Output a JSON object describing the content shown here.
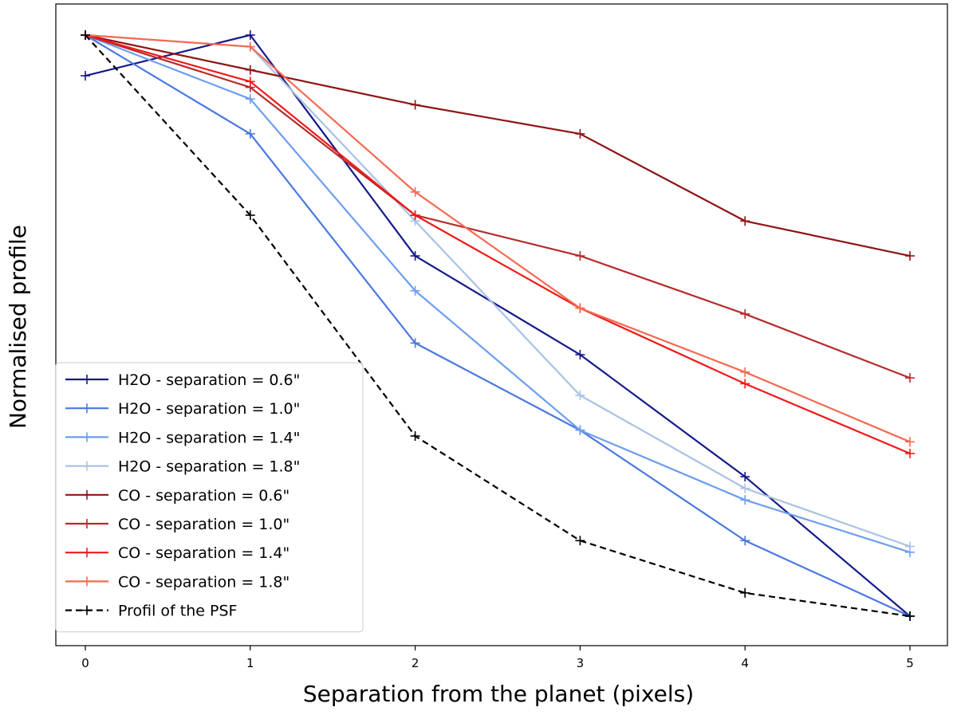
{
  "chart_data": {
    "type": "line",
    "title": "",
    "xlabel": "Separation from the planet (pixels)",
    "ylabel": "Normalised profile",
    "xlim": [
      -0.45,
      5.3
    ],
    "ylim": [
      0.0,
      1.0
    ],
    "x_ticks": [
      0,
      1,
      2,
      3,
      4,
      5
    ],
    "y_ticks": [],
    "grid": false,
    "legend_position": "lower-left",
    "x": [
      0,
      1,
      2,
      3,
      4,
      5
    ],
    "series": [
      {
        "name": "H2O - separation = 0.6\"",
        "color": "#141a8a",
        "dash": "solid",
        "values": [
          0.93,
          1.0,
          0.62,
          0.45,
          0.24,
          0.0
        ]
      },
      {
        "name": "H2O - separation = 1.0\"",
        "color": "#4a78e0",
        "dash": "solid",
        "values": [
          1.0,
          0.83,
          0.47,
          0.32,
          0.13,
          0.0
        ]
      },
      {
        "name": "H2O - separation = 1.4\"",
        "color": "#6c9ef0",
        "dash": "solid",
        "values": [
          1.0,
          0.89,
          0.56,
          0.32,
          0.2,
          0.11
        ]
      },
      {
        "name": "H2O - separation = 1.8\"",
        "color": "#a9c2e4",
        "dash": "solid",
        "values": [
          1.0,
          0.98,
          0.68,
          0.38,
          0.22,
          0.12
        ]
      },
      {
        "name": "CO - separation = 0.6\"",
        "color": "#8e1414",
        "dash": "solid",
        "values": [
          1.0,
          0.94,
          0.88,
          0.83,
          0.68,
          0.62
        ]
      },
      {
        "name": "CO - separation = 1.0\"",
        "color": "#b52c2c",
        "dash": "solid",
        "values": [
          1.0,
          0.91,
          0.69,
          0.62,
          0.52,
          0.41
        ]
      },
      {
        "name": "CO - separation = 1.4\"",
        "color": "#f01a1a",
        "dash": "solid",
        "values": [
          1.0,
          0.92,
          0.69,
          0.53,
          0.4,
          0.28
        ]
      },
      {
        "name": "CO - separation = 1.8\"",
        "color": "#f46a52",
        "dash": "solid",
        "values": [
          1.0,
          0.98,
          0.73,
          0.53,
          0.42,
          0.3
        ]
      },
      {
        "name": "Profil of the PSF",
        "color": "#000000",
        "dash": "dashed",
        "values": [
          1.0,
          0.69,
          0.31,
          0.13,
          0.04,
          0.0
        ]
      }
    ]
  }
}
